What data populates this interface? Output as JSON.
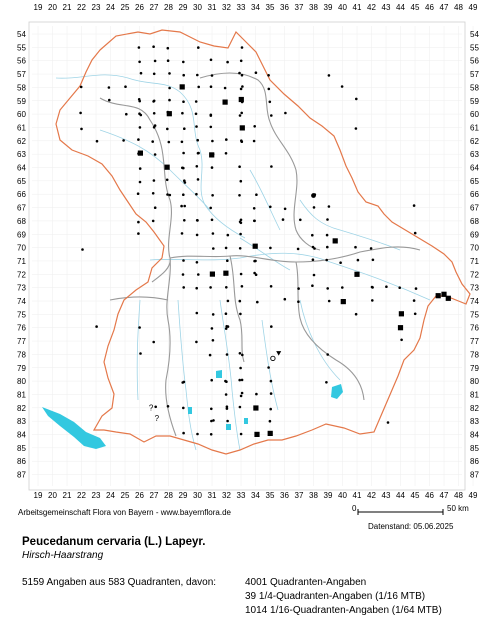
{
  "map": {
    "x_ticks": [
      "19",
      "20",
      "21",
      "22",
      "23",
      "24",
      "25",
      "26",
      "27",
      "28",
      "29",
      "30",
      "31",
      "32",
      "33",
      "34",
      "35",
      "36",
      "37",
      "38",
      "39",
      "40",
      "41",
      "42",
      "43",
      "44",
      "45",
      "46",
      "47",
      "48",
      "49"
    ],
    "y_ticks": [
      "54",
      "55",
      "56",
      "57",
      "58",
      "59",
      "60",
      "61",
      "62",
      "63",
      "64",
      "65",
      "66",
      "67",
      "68",
      "69",
      "70",
      "71",
      "72",
      "73",
      "74",
      "75",
      "76",
      "77",
      "78",
      "79",
      "80",
      "81",
      "82",
      "83",
      "84",
      "85",
      "86",
      "87"
    ],
    "colors": {
      "state_border": "#e4784a",
      "region_border": "#999999",
      "rivers": "#9fd4e6",
      "lakes": "#33c8e0",
      "dots": "#000000"
    },
    "marker_legend": [
      "small-dot",
      "square",
      "circle",
      "open-circle",
      "triangle",
      "question-mark"
    ]
  },
  "scale": {
    "zero": "0",
    "label": "50 km"
  },
  "credit": "Arbeitsgemeinschaft Flora von Bayern - www.bayernflora.de",
  "date": "Datenstand: 05.06.2025",
  "species": "Peucedanum cervaria (L.) Lapeyr.",
  "common_name": "Hirsch-Haarstrang",
  "summary": "5159 Angaben aus 583 Quadranten, davon:",
  "stats": [
    "4001 Quadranten-Angaben",
    "39 1/4-Quadranten-Angaben (1/16 MTB)",
    "1014 1/16-Quadranten-Angaben (1/64 MTB)"
  ]
}
